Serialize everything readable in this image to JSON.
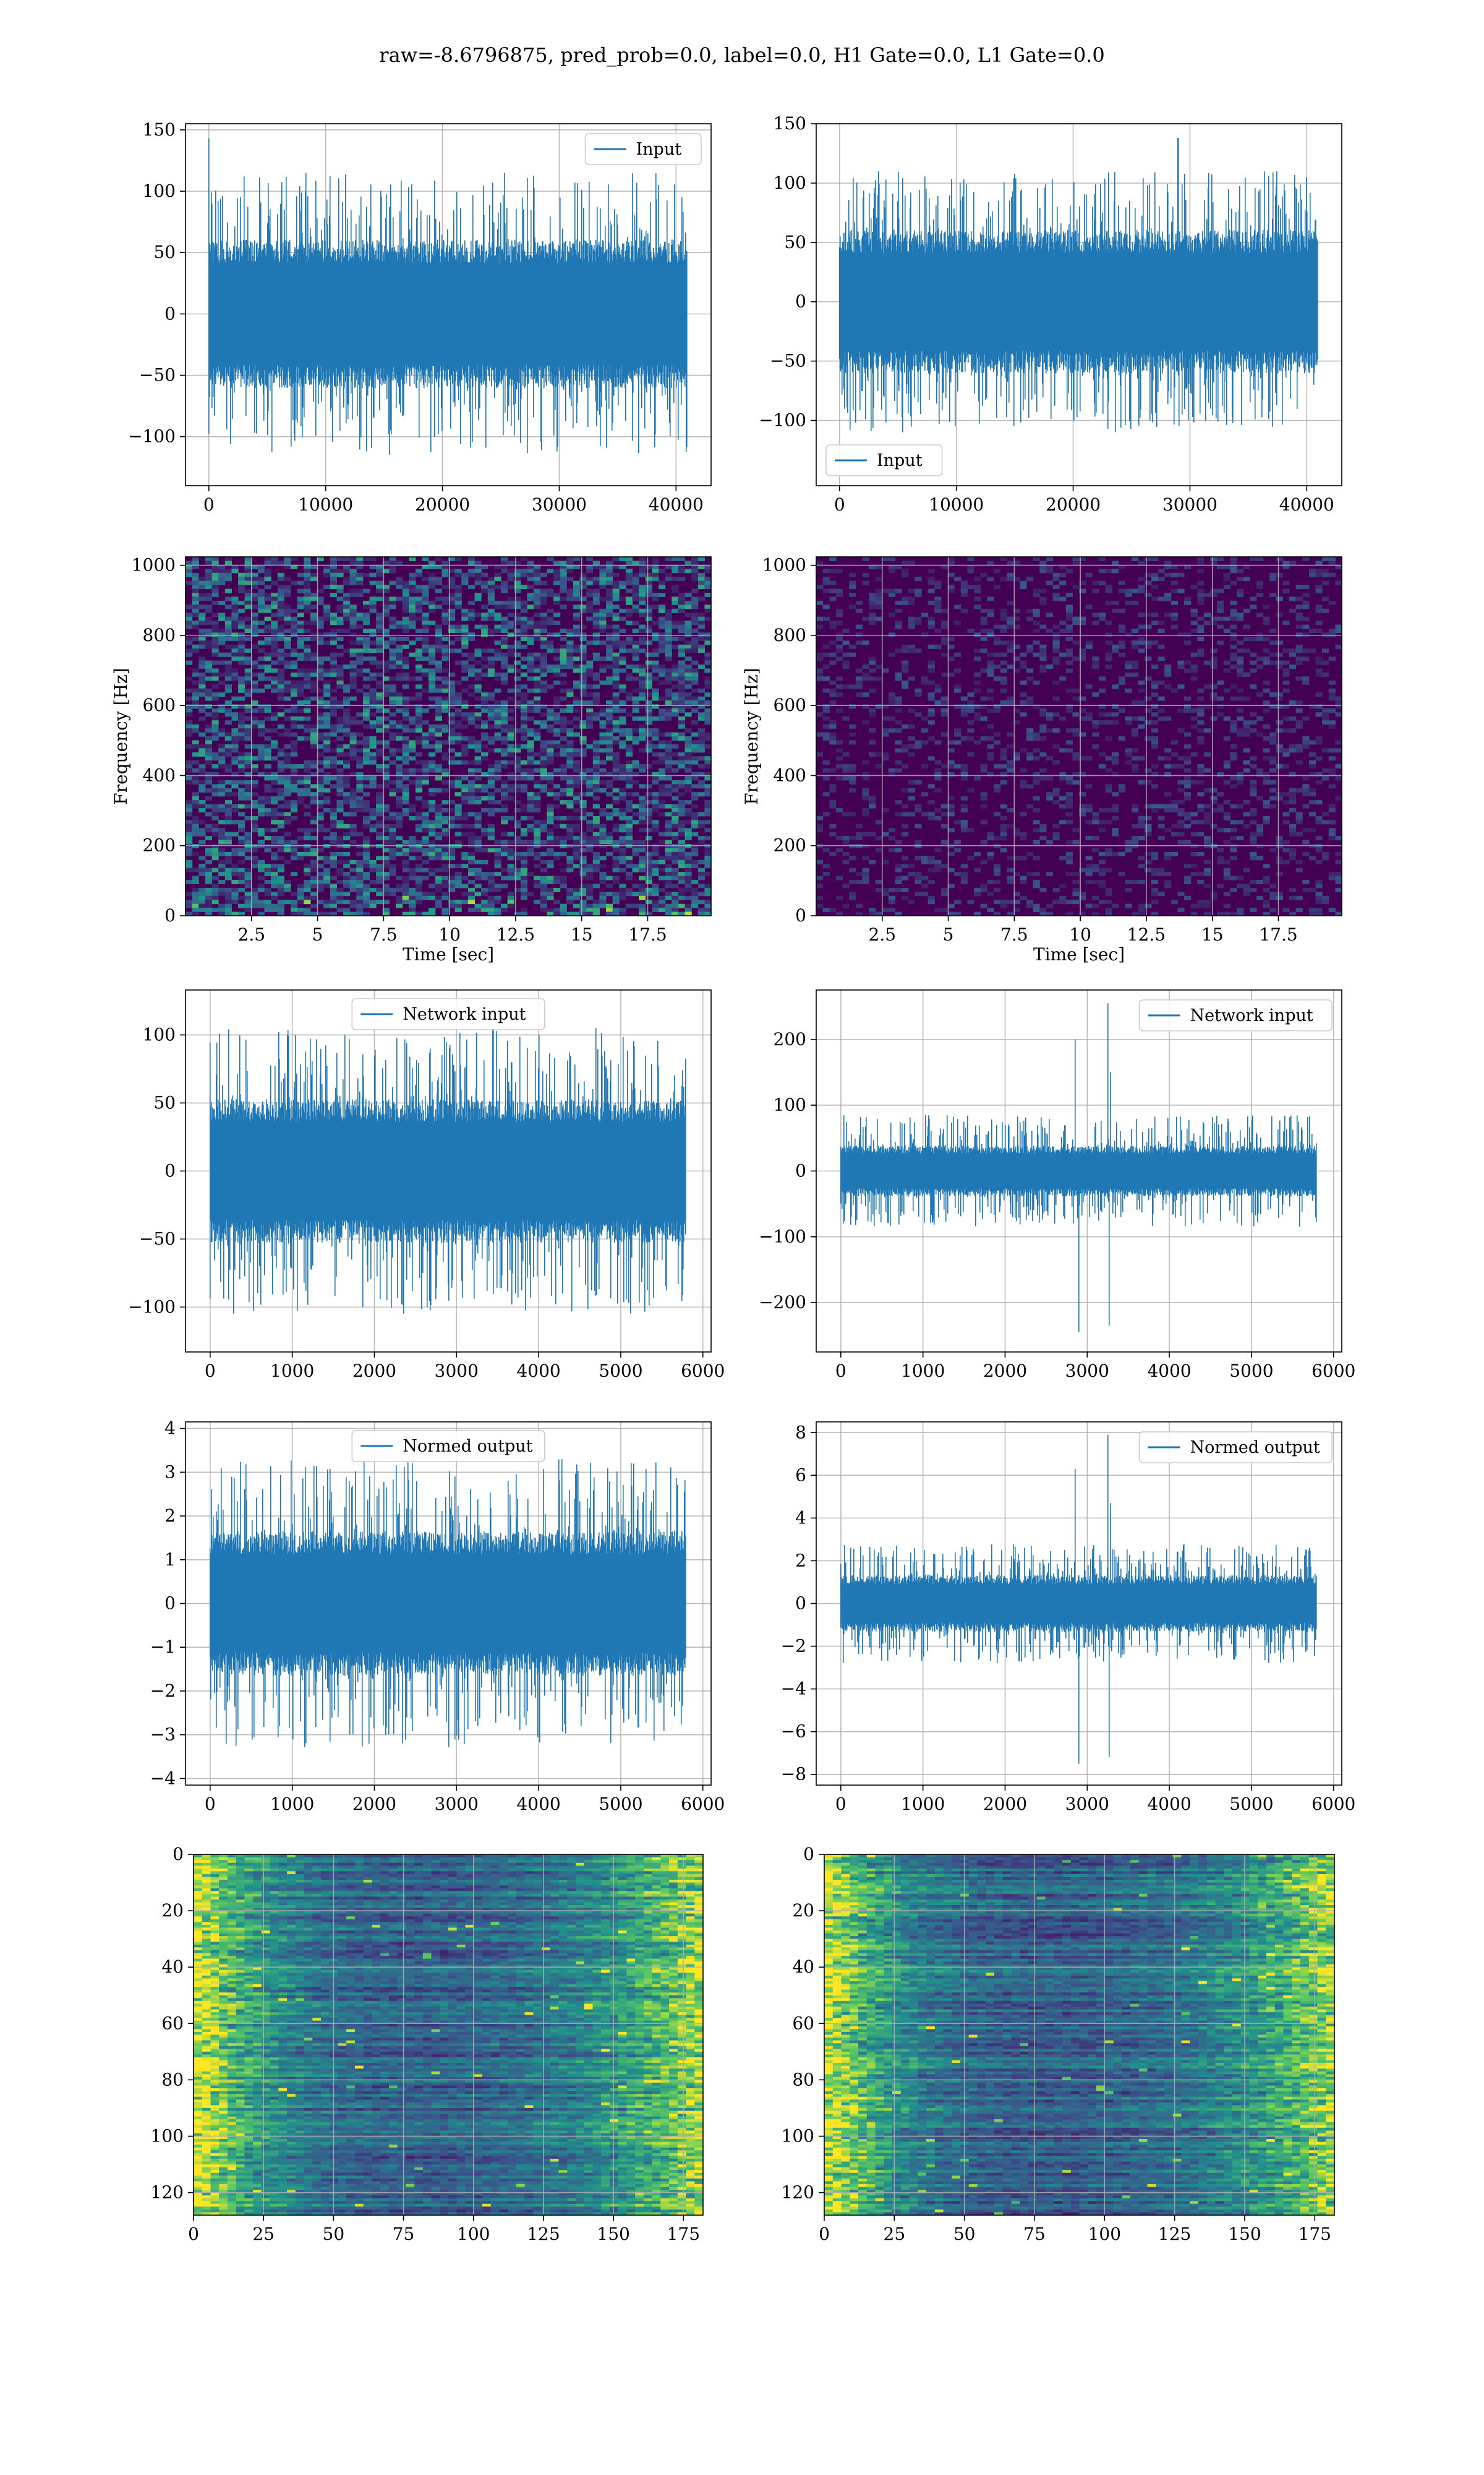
{
  "suptitle": "raw=-8.6796875, pred_prob=0.0, label=0.0, H1 Gate=0.0, L1 Gate=0.0",
  "colors": {
    "line": "#1f77b4",
    "grid": "#b0b0b0",
    "axes": "#000000",
    "viridis_bg": "#440154"
  },
  "chart_data": [
    {
      "id": "input-h1",
      "type": "line",
      "legend": "Input",
      "legend_loc": "upper right",
      "xlim": [
        -2000,
        43000
      ],
      "ylim": [
        -140,
        155
      ],
      "xticks": [
        0,
        10000,
        20000,
        30000,
        40000
      ],
      "yticks": [
        -100,
        -50,
        0,
        50,
        100,
        150
      ],
      "series": [
        {
          "n": 40960,
          "band_abs": 55,
          "spike_abs": 115,
          "peak": 143,
          "peak_at": 0,
          "seed": 11
        }
      ],
      "grid": true
    },
    {
      "id": "input-l1",
      "type": "line",
      "legend": "Input",
      "legend_loc": "lower left",
      "xlim": [
        -2000,
        43000
      ],
      "ylim": [
        -155,
        150
      ],
      "xticks": [
        0,
        10000,
        20000,
        30000,
        40000
      ],
      "yticks": [
        -100,
        -50,
        0,
        50,
        100,
        150
      ],
      "series": [
        {
          "n": 40960,
          "band_abs": 55,
          "spike_abs": 110,
          "peak": 138,
          "peak_at": 29000,
          "seed": 23
        }
      ],
      "grid": true
    },
    {
      "id": "spec-h1",
      "type": "heatmap",
      "xlabel": "Time [sec]",
      "ylabel": "Frequency [Hz]",
      "xlim": [
        0,
        19.9
      ],
      "ylim": [
        0,
        1024
      ],
      "xticks": [
        2.5,
        5.0,
        7.5,
        10.0,
        12.5,
        15.0,
        17.5
      ],
      "yticks": [
        0,
        200,
        400,
        600,
        800,
        1000
      ],
      "intensity": "high",
      "seed": 5,
      "grid": true
    },
    {
      "id": "spec-l1",
      "type": "heatmap",
      "xlabel": "Time [sec]",
      "ylabel": "Frequency [Hz]",
      "xlim": [
        0,
        19.9
      ],
      "ylim": [
        0,
        1024
      ],
      "xticks": [
        2.5,
        5.0,
        7.5,
        10.0,
        12.5,
        15.0,
        17.5
      ],
      "yticks": [
        0,
        200,
        400,
        600,
        800,
        1000
      ],
      "intensity": "low",
      "seed": 9,
      "grid": true
    },
    {
      "id": "net-h1",
      "type": "line",
      "legend": "Network input",
      "legend_loc": "upper center",
      "xlim": [
        -300,
        6100
      ],
      "ylim": [
        -133,
        133
      ],
      "xticks": [
        0,
        1000,
        2000,
        3000,
        4000,
        5000,
        6000
      ],
      "yticks": [
        -100,
        -50,
        0,
        50,
        100
      ],
      "series": [
        {
          "n": 5800,
          "band_abs": 48,
          "spike_abs": 105,
          "seed": 31
        }
      ],
      "grid": true
    },
    {
      "id": "net-l1",
      "type": "line",
      "legend": "Network input",
      "legend_loc": "upper right",
      "xlim": [
        -300,
        6100
      ],
      "ylim": [
        -275,
        275
      ],
      "xticks": [
        0,
        1000,
        2000,
        3000,
        4000,
        5000,
        6000
      ],
      "yticks": [
        -200,
        -100,
        0,
        100,
        200
      ],
      "series": [
        {
          "n": 5800,
          "band_abs": 35,
          "spike_abs": 85,
          "glitches": [
            [
              2850,
              200
            ],
            [
              2900,
              -245
            ],
            [
              3250,
              255
            ],
            [
              3270,
              -235
            ],
            [
              3280,
              150
            ]
          ],
          "seed": 37
        }
      ],
      "grid": true
    },
    {
      "id": "norm-h1",
      "type": "line",
      "legend": "Normed output",
      "legend_loc": "upper center",
      "xlim": [
        -300,
        6100
      ],
      "ylim": [
        -4.15,
        4.15
      ],
      "xticks": [
        0,
        1000,
        2000,
        3000,
        4000,
        5000,
        6000
      ],
      "yticks": [
        -4,
        -3,
        -2,
        -1,
        0,
        1,
        2,
        3,
        4
      ],
      "series": [
        {
          "n": 5800,
          "band_abs": 1.5,
          "spike_abs": 3.3,
          "seed": 43
        }
      ],
      "grid": true
    },
    {
      "id": "norm-l1",
      "type": "line",
      "legend": "Normed output",
      "legend_loc": "upper right",
      "xlim": [
        -300,
        6100
      ],
      "ylim": [
        -8.5,
        8.5
      ],
      "xticks": [
        0,
        1000,
        2000,
        3000,
        4000,
        5000,
        6000
      ],
      "yticks": [
        -8,
        -6,
        -4,
        -2,
        0,
        2,
        4,
        6,
        8
      ],
      "series": [
        {
          "n": 5800,
          "band_abs": 1.2,
          "spike_abs": 2.8,
          "glitches": [
            [
              2850,
              6.3
            ],
            [
              2900,
              -7.5
            ],
            [
              3250,
              7.9
            ],
            [
              3270,
              -7.2
            ],
            [
              3280,
              4.7
            ]
          ],
          "seed": 47
        }
      ],
      "grid": true
    },
    {
      "id": "feat-h1",
      "type": "heatmap",
      "xlim": [
        0,
        182
      ],
      "ylim_inverted": [
        128,
        0
      ],
      "xticks": [
        0,
        25,
        50,
        75,
        100,
        125,
        150,
        175
      ],
      "yticks": [
        0,
        20,
        40,
        60,
        80,
        100,
        120
      ],
      "rows": 128,
      "cols": 182,
      "pattern": "edges",
      "seed": 53,
      "grid": true
    },
    {
      "id": "feat-l1",
      "type": "heatmap",
      "xlim": [
        0,
        182
      ],
      "ylim_inverted": [
        128,
        0
      ],
      "xticks": [
        0,
        25,
        50,
        75,
        100,
        125,
        150,
        175
      ],
      "yticks": [
        0,
        20,
        40,
        60,
        80,
        100,
        120
      ],
      "rows": 128,
      "cols": 182,
      "pattern": "edges",
      "seed": 59,
      "grid": true
    }
  ]
}
